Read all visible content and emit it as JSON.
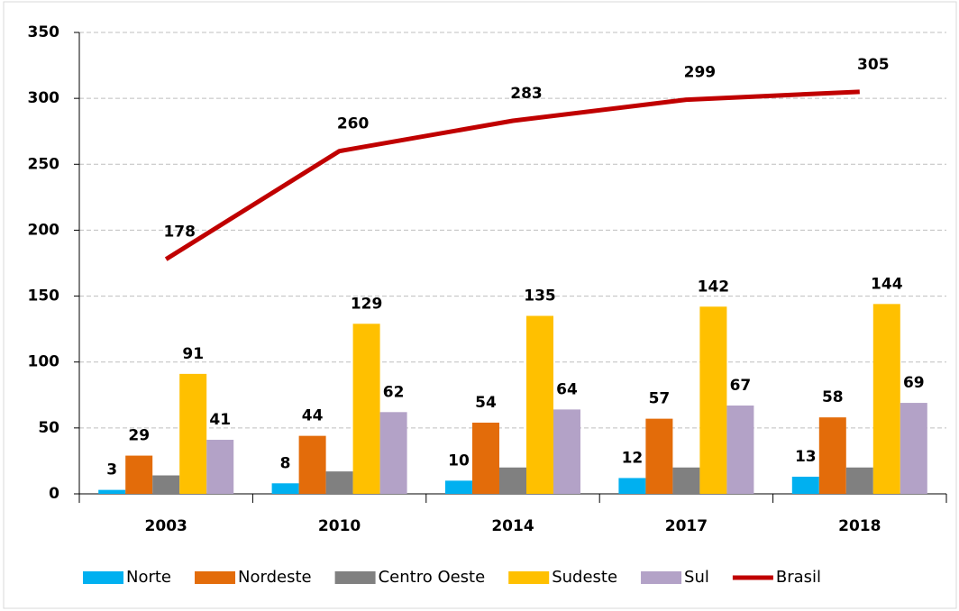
{
  "chart_data": {
    "type": "bar",
    "categories": [
      "2003",
      "2010",
      "2014",
      "2017",
      "2018"
    ],
    "series": [
      {
        "name": "Norte",
        "type": "bar",
        "color": "#00b0f0",
        "values": [
          3,
          8,
          10,
          12,
          13
        ],
        "data_labels": true
      },
      {
        "name": "Nordeste",
        "type": "bar",
        "color": "#e36c0a",
        "values": [
          29,
          44,
          54,
          57,
          58
        ],
        "data_labels": true
      },
      {
        "name": "Centro Oeste",
        "type": "bar",
        "color": "#808080",
        "values": [
          14,
          17,
          20,
          20,
          20
        ],
        "data_labels": false
      },
      {
        "name": "Sudeste",
        "type": "bar",
        "color": "#ffc000",
        "values": [
          91,
          129,
          135,
          142,
          144
        ],
        "data_labels": true
      },
      {
        "name": "Sul",
        "type": "bar",
        "color": "#b3a2c7",
        "values": [
          41,
          62,
          64,
          67,
          69
        ],
        "data_labels": true
      },
      {
        "name": "Brasil",
        "type": "line",
        "color": "#c00000",
        "values": [
          178,
          260,
          283,
          299,
          305
        ],
        "data_labels": true
      }
    ],
    "ylim": [
      0,
      350
    ],
    "yticks": [
      0,
      50,
      100,
      150,
      200,
      250,
      300,
      350
    ],
    "grid": true,
    "legend": "bottom"
  }
}
